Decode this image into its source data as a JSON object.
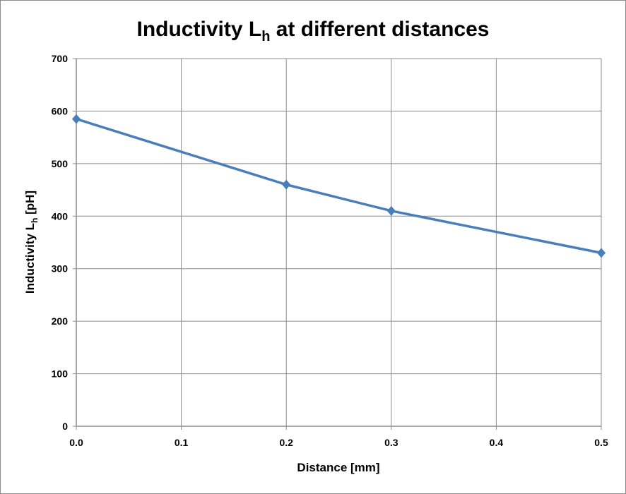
{
  "chart_data": {
    "type": "line",
    "title": "Inductivity L",
    "title_sub": "h",
    "title_rest": " at different distances",
    "xlabel": "Distance [mm]",
    "ylabel": "Inductivity L",
    "ylabel_sub": "h",
    "ylabel_rest": " [pH]",
    "xlim": [
      0,
      0.5
    ],
    "ylim": [
      0,
      700
    ],
    "x_ticks": [
      "0.0",
      "0.1",
      "0.2",
      "0.3",
      "0.4",
      "0.5"
    ],
    "y_ticks": [
      "0",
      "100",
      "200",
      "300",
      "400",
      "500",
      "600",
      "700"
    ],
    "grid": true,
    "legend": "none",
    "marker": "diamond",
    "series_color": "#4a7ebb",
    "series": [
      {
        "x": [
          0.0,
          0.2,
          0.3,
          0.5
        ],
        "y": [
          585,
          460,
          410,
          330
        ]
      }
    ]
  }
}
